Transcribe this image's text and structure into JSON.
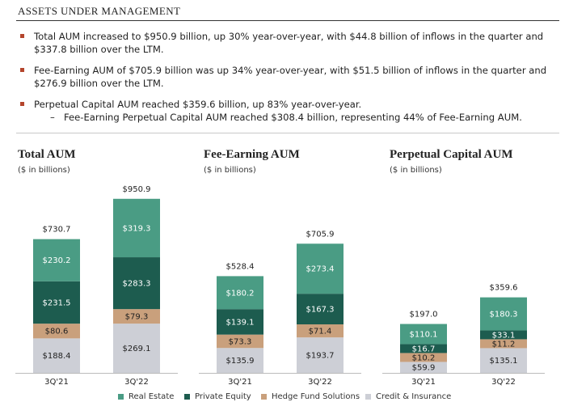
{
  "header": {
    "title": "ASSETS UNDER MANAGEMENT"
  },
  "bullets": [
    {
      "text": "Total AUM increased to $950.9 billion, up 30% year-over-year, with $44.8 billion of inflows in the quarter and $337.8 billion over the LTM."
    },
    {
      "text": "Fee-Earning AUM of $705.9 billion was up 34% year-over-year, with $51.5 billion of inflows in the quarter and $276.9 billion over the LTM."
    },
    {
      "text": "Perpetual Capital AUM reached $359.6 billion, up 83% year-over-year.",
      "sub": "Fee-Earning Perpetual Capital AUM reached $308.4 billion, representing 44% of Fee-Earning AUM."
    }
  ],
  "sub_marker": "–",
  "colors": {
    "real_estate": "#4a9c84",
    "private_equity": "#1d5c4f",
    "hedge_fund": "#c9a07c",
    "credit": "#cdcfd6",
    "bullet": "#b4452c"
  },
  "chart_data": [
    {
      "type": "bar",
      "stacked": true,
      "title": "Total AUM",
      "subtitle": "($ in billions)",
      "categories": [
        "3Q'21",
        "3Q'22"
      ],
      "totals": [
        "$730.7",
        "$950.9"
      ],
      "series": [
        {
          "name": "Credit & Insurance",
          "values": [
            188.4,
            269.1
          ],
          "labels": [
            "$188.4",
            "$269.1"
          ]
        },
        {
          "name": "Hedge Fund Solutions",
          "values": [
            80.6,
            79.3
          ],
          "labels": [
            "$80.6",
            "$79.3"
          ]
        },
        {
          "name": "Private Equity",
          "values": [
            231.5,
            283.3
          ],
          "labels": [
            "$231.5",
            "$283.3"
          ]
        },
        {
          "name": "Real Estate",
          "values": [
            230.2,
            319.3
          ],
          "labels": [
            "$230.2",
            "$319.3"
          ]
        }
      ]
    },
    {
      "type": "bar",
      "stacked": true,
      "title": "Fee-Earning AUM",
      "subtitle": "($ in billions)",
      "categories": [
        "3Q'21",
        "3Q'22"
      ],
      "totals": [
        "$528.4",
        "$705.9"
      ],
      "series": [
        {
          "name": "Credit & Insurance",
          "values": [
            135.9,
            193.7
          ],
          "labels": [
            "$135.9",
            "$193.7"
          ]
        },
        {
          "name": "Hedge Fund Solutions",
          "values": [
            73.3,
            71.4
          ],
          "labels": [
            "$73.3",
            "$71.4"
          ]
        },
        {
          "name": "Private Equity",
          "values": [
            139.1,
            167.3
          ],
          "labels": [
            "$139.1",
            "$167.3"
          ]
        },
        {
          "name": "Real Estate",
          "values": [
            180.2,
            273.4
          ],
          "labels": [
            "$180.2",
            "$273.4"
          ]
        }
      ]
    },
    {
      "type": "bar",
      "stacked": true,
      "title": "Perpetual Capital AUM",
      "subtitle": "($ in billions)",
      "categories": [
        "3Q'21",
        "3Q'22"
      ],
      "totals": [
        "$197.0",
        "$359.6"
      ],
      "series": [
        {
          "name": "Credit & Insurance",
          "values": [
            59.9,
            135.1
          ],
          "labels": [
            "$59.9",
            "$135.1"
          ]
        },
        {
          "name": "Hedge Fund Solutions",
          "values": [
            10.2,
            11.2
          ],
          "labels": [
            "$10.2",
            "$11.2"
          ]
        },
        {
          "name": "Private Equity",
          "values": [
            16.7,
            33.1
          ],
          "labels": [
            "$16.7",
            "$33.1"
          ]
        },
        {
          "name": "Real Estate",
          "values": [
            110.1,
            180.3
          ],
          "labels": [
            "$110.1",
            "$180.3"
          ]
        }
      ]
    }
  ],
  "legend": [
    {
      "name": "Real Estate",
      "color_key": "real_estate"
    },
    {
      "name": "Private Equity",
      "color_key": "private_equity"
    },
    {
      "name": "Hedge Fund Solutions",
      "color_key": "hedge_fund"
    },
    {
      "name": "Credit & Insurance",
      "color_key": "credit"
    }
  ]
}
